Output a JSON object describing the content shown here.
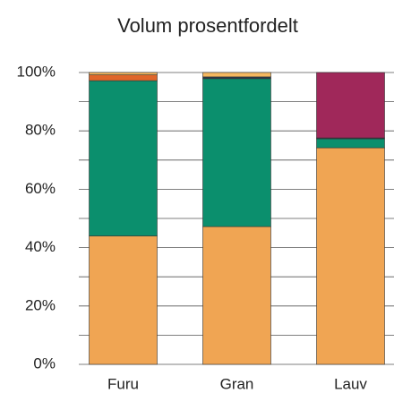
{
  "chart_data": {
    "type": "stacked_bar",
    "title": "Volum prosentfordelt",
    "categories": [
      "Furu",
      "Gran",
      "Lauv"
    ],
    "series": [
      {
        "color": "#f0a553",
        "values": [
          44,
          47.2,
          74.2
        ]
      },
      {
        "color": "#0b8f6d",
        "values": [
          53.2,
          50.7,
          3.1
        ]
      },
      {
        "color": "#2e3b4c",
        "values": [
          0,
          0.6,
          0.3
        ]
      },
      {
        "color": "#e0662a",
        "values": [
          2.0,
          0,
          0
        ]
      },
      {
        "color": "#f5b860",
        "values": [
          0.8,
          1.5,
          0
        ]
      },
      {
        "color": "#a0285a",
        "values": [
          0,
          0,
          22.4
        ]
      }
    ],
    "ylim": [
      0,
      100
    ],
    "yticks": [
      {
        "value": 0,
        "label": "0%"
      },
      {
        "value": 20,
        "label": "20%"
      },
      {
        "value": 40,
        "label": "40%"
      },
      {
        "value": 60,
        "label": "60%"
      },
      {
        "value": 80,
        "label": "80%"
      },
      {
        "value": 100,
        "label": "100%"
      }
    ],
    "minor_yticks": [
      10,
      30,
      50,
      70,
      90
    ],
    "grid": true
  }
}
